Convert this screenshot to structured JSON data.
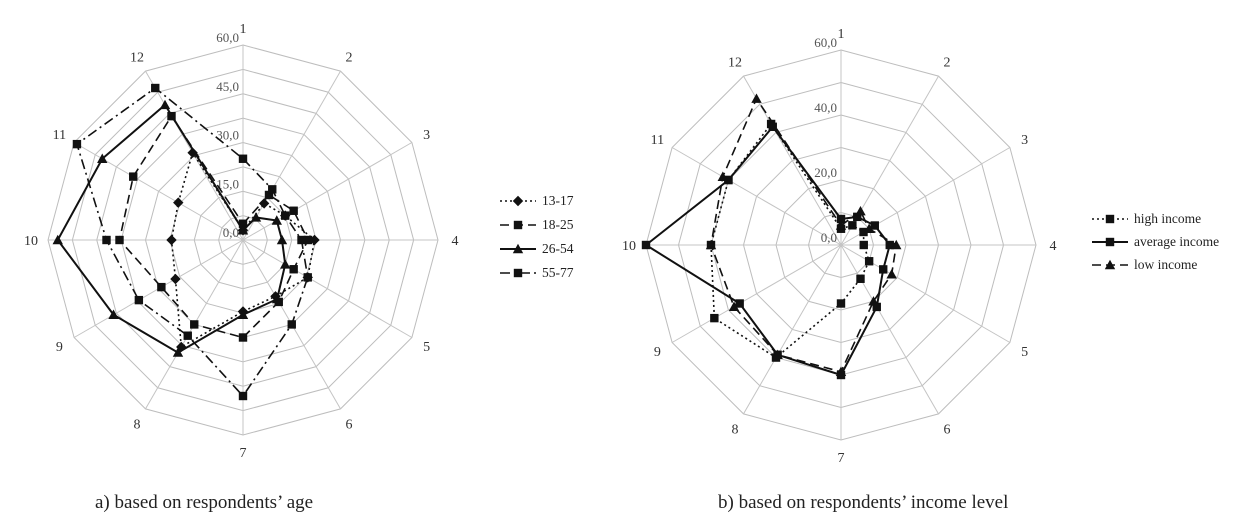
{
  "captions": {
    "a": "a) based on respondents’ age",
    "b": "b) based on respondents’ income level"
  },
  "chart_data": [
    {
      "type": "radar",
      "title": "",
      "categories": [
        "1",
        "2",
        "3",
        "4",
        "5",
        "6",
        "7",
        "8",
        "9",
        "10",
        "11",
        "12"
      ],
      "rlim": [
        0,
        60
      ],
      "rticks": [
        0,
        15,
        30,
        45,
        60
      ],
      "rtick_labels": [
        "0,0",
        "15,0",
        "30,0",
        "45,0",
        "60,0"
      ],
      "grid": true,
      "legend": "right",
      "series": [
        {
          "name": "13-17",
          "values": [
            3,
            13,
            15,
            22,
            23,
            20,
            22,
            38,
            24,
            22,
            23,
            31
          ],
          "line": "dotted",
          "marker": "diamond"
        },
        {
          "name": "18-25",
          "values": [
            5,
            16,
            18,
            20,
            18,
            22,
            30,
            30,
            29,
            38,
            39,
            44
          ],
          "line": "dashed",
          "marker": "square"
        },
        {
          "name": "26-54",
          "values": [
            3,
            8,
            12,
            12,
            15,
            21,
            23,
            40,
            46,
            57,
            50,
            48
          ],
          "line": "solid",
          "marker": "triangle"
        },
        {
          "name": "55-77",
          "values": [
            25,
            18,
            15,
            18,
            23,
            30,
            48,
            34,
            37,
            42,
            59,
            54
          ],
          "line": "dashdot",
          "marker": "square"
        }
      ]
    },
    {
      "type": "radar",
      "title": "",
      "categories": [
        "1",
        "2",
        "3",
        "4",
        "5",
        "6",
        "7",
        "8",
        "9",
        "10",
        "11",
        "12"
      ],
      "rlim": [
        0,
        60
      ],
      "rticks": [
        0,
        20,
        40,
        60
      ],
      "rtick_labels": [
        "0,0",
        "20,0",
        "40,0",
        "60,0"
      ],
      "grid": true,
      "legend": "right",
      "series": [
        {
          "name": "high income",
          "values": [
            5,
            7,
            8,
            7,
            10,
            12,
            18,
            40,
            45,
            40,
            40,
            43
          ],
          "line": "dotted",
          "marker": "square"
        },
        {
          "name": "average income",
          "values": [
            8,
            10,
            12,
            15,
            15,
            22,
            40,
            39,
            36,
            60,
            40,
            42
          ],
          "line": "solid",
          "marker": "square"
        },
        {
          "name": "low income",
          "values": [
            6,
            12,
            10,
            17,
            18,
            20,
            39,
            39,
            38,
            40,
            42,
            52
          ],
          "line": "dashed",
          "marker": "triangle"
        }
      ]
    }
  ]
}
